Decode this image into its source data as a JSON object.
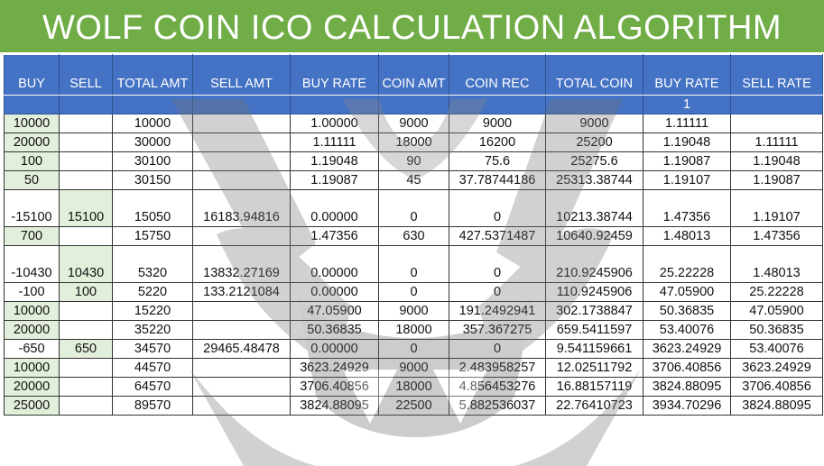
{
  "title": "WOLF COIN ICO CALCULATION ALGORITHM",
  "colors": {
    "title_bar": "#70ad47",
    "header": "#4472c4",
    "buy_sell_highlight": "#e2efda"
  },
  "columns": [
    "BUY",
    "SELL",
    "TOTAL AMT",
    "SELL AMT",
    "BUY RATE",
    "COIN AMT",
    "COIN REC",
    "TOTAL COIN",
    "BUY RATE",
    "SELL RATE"
  ],
  "subheader": [
    "",
    "",
    "",
    "",
    "",
    "",
    "",
    "",
    "1",
    ""
  ],
  "rows": [
    [
      "10000",
      "",
      "10000",
      "",
      "1.00000",
      "9000",
      "9000",
      "9000",
      "1.11111",
      ""
    ],
    [
      "20000",
      "",
      "30000",
      "",
      "1.11111",
      "18000",
      "16200",
      "25200",
      "1.19048",
      "1.11111"
    ],
    [
      "100",
      "",
      "30100",
      "",
      "1.19048",
      "90",
      "75.6",
      "25275.6",
      "1.19087",
      "1.19048"
    ],
    [
      "50",
      "",
      "30150",
      "",
      "1.19087",
      "45",
      "37.78744186",
      "25313.38744",
      "1.19107",
      "1.19087"
    ],
    [
      "-15100",
      "15100",
      "15050",
      "16183.94816",
      "0.00000",
      "0",
      "0",
      "10213.38744",
      "1.47356",
      "1.19107"
    ],
    [
      "700",
      "",
      "15750",
      "",
      "1.47356",
      "630",
      "427.5371487",
      "10640.92459",
      "1.48013",
      "1.47356"
    ],
    [
      "-10430",
      "10430",
      "5320",
      "13832.27169",
      "0.00000",
      "0",
      "0",
      "210.9245906",
      "25.22228",
      "1.48013"
    ],
    [
      "-100",
      "100",
      "5220",
      "133.2121084",
      "0.00000",
      "0",
      "0",
      "110.9245906",
      "47.05900",
      "25.22228"
    ],
    [
      "10000",
      "",
      "15220",
      "",
      "47.05900",
      "9000",
      "191.2492941",
      "302.1738847",
      "50.36835",
      "47.05900"
    ],
    [
      "20000",
      "",
      "35220",
      "",
      "50.36835",
      "18000",
      "357.367275",
      "659.5411597",
      "53.40076",
      "50.36835"
    ],
    [
      "-650",
      "650",
      "34570",
      "29465.48478",
      "0.00000",
      "0",
      "0",
      "9.541159661",
      "3623.24929",
      "53.40076"
    ],
    [
      "10000",
      "",
      "44570",
      "",
      "3623.24929",
      "9000",
      "2.483958257",
      "12.02511792",
      "3706.40856",
      "3623.24929"
    ],
    [
      "20000",
      "",
      "64570",
      "",
      "3706.40856",
      "18000",
      "4.856453276",
      "16.88157119",
      "3824.88095",
      "3706.40856"
    ],
    [
      "25000",
      "",
      "89570",
      "",
      "3824.88095",
      "22500",
      "5.882536037",
      "22.76410723",
      "3934.70296",
      "3824.88095"
    ]
  ]
}
